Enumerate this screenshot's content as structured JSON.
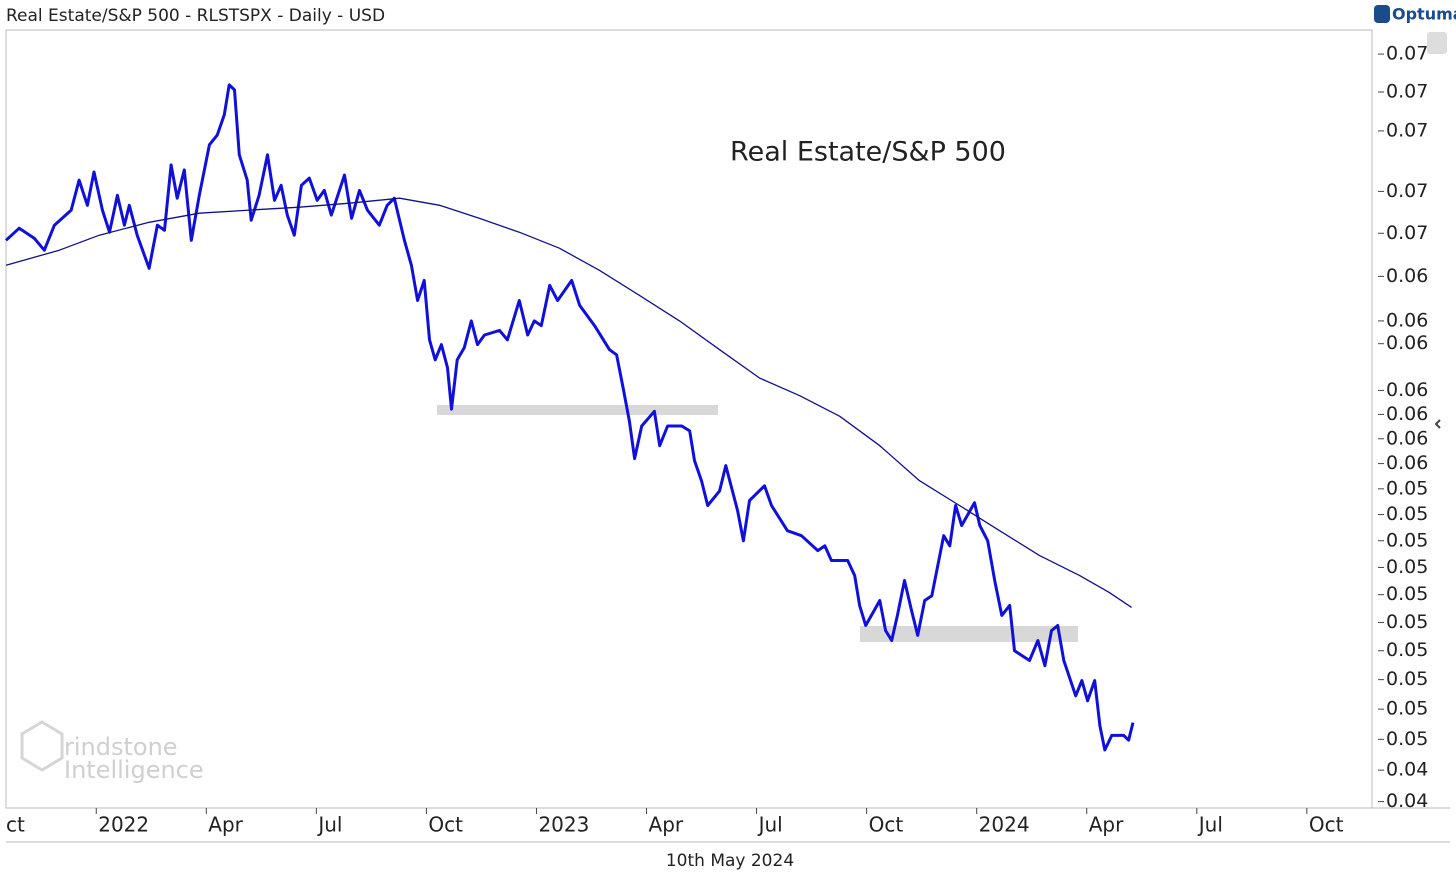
{
  "header": {
    "title": "Real Estate/S&P 500 - RLSTSPX - Daily - USD",
    "brand": "Optuma",
    "watermark": [
      "rindstone",
      "Intelligence"
    ],
    "date": "10th May 2024"
  },
  "chart_data": {
    "type": "line",
    "log": true,
    "annotation": "Real Estate/S&P 500",
    "xlim": [
      2021.795,
      2024.898
    ],
    "xticks": [
      {
        "value": 2021.75,
        "label": "ct"
      },
      {
        "value": 2022,
        "label": "2022"
      },
      {
        "value": 2022.25,
        "label": "Apr"
      },
      {
        "value": 2022.5,
        "label": "Jul"
      },
      {
        "value": 2022.75,
        "label": "Oct"
      },
      {
        "value": 2023,
        "label": "2023"
      },
      {
        "value": 2023.25,
        "label": "Apr"
      },
      {
        "value": 2023.5,
        "label": "Jul"
      },
      {
        "value": 2023.75,
        "label": "Oct"
      },
      {
        "value": 2024,
        "label": "2024"
      },
      {
        "value": 2024.25,
        "label": "Apr"
      },
      {
        "value": 2024.5,
        "label": "Jul"
      },
      {
        "value": 2024.75,
        "label": "Oct"
      }
    ],
    "ylim": [
      0.0438,
      0.0763
    ],
    "yticks": [
      {
        "value": 0.044,
        "label": "0.04"
      },
      {
        "value": 0.045,
        "label": "0.04"
      },
      {
        "value": 0.046,
        "label": "0.05"
      },
      {
        "value": 0.047,
        "label": "0.05"
      },
      {
        "value": 0.048,
        "label": "0.05"
      },
      {
        "value": 0.049,
        "label": "0.05"
      },
      {
        "value": 0.05,
        "label": "0.05"
      },
      {
        "value": 0.051,
        "label": "0.05"
      },
      {
        "value": 0.052,
        "label": "0.05"
      },
      {
        "value": 0.053,
        "label": "0.05"
      },
      {
        "value": 0.054,
        "label": "0.05"
      },
      {
        "value": 0.055,
        "label": "0.05"
      },
      {
        "value": 0.056,
        "label": "0.06"
      },
      {
        "value": 0.057,
        "label": "0.06"
      },
      {
        "value": 0.058,
        "label": "0.06"
      },
      {
        "value": 0.059,
        "label": "0.06"
      },
      {
        "value": 0.061,
        "label": "0.06"
      },
      {
        "value": 0.062,
        "label": "0.06"
      },
      {
        "value": 0.064,
        "label": "0.06"
      },
      {
        "value": 0.066,
        "label": "0.07"
      },
      {
        "value": 0.068,
        "label": "0.07"
      },
      {
        "value": 0.071,
        "label": "0.07"
      },
      {
        "value": 0.073,
        "label": "0.07"
      },
      {
        "value": 0.075,
        "label": "0.07"
      }
    ],
    "series": [
      {
        "color": "#1010d8",
        "width": 3,
        "x": [
          2021.795,
          2021.825,
          2021.859,
          2021.882,
          2021.905,
          2021.943,
          2021.961,
          2021.98,
          2021.995,
          2022.014,
          2022.03,
          2022.048,
          2022.064,
          2022.075,
          2022.093,
          2022.12,
          2022.139,
          2022.155,
          2022.17,
          2022.184,
          2022.2,
          2022.216,
          2022.234,
          2022.257,
          2022.275,
          2022.291,
          2022.302,
          2022.314,
          2022.325,
          2022.343,
          2022.352,
          2022.37,
          2022.389,
          2022.405,
          2022.42,
          2022.434,
          2022.45,
          2022.466,
          2022.484,
          2022.502,
          2022.518,
          2022.534,
          2022.564,
          2022.58,
          2022.598,
          2022.616,
          2022.643,
          2022.661,
          2022.677,
          2022.7,
          2022.716,
          2022.73,
          2022.745,
          2022.757,
          2022.77,
          2022.784,
          2022.798,
          2022.807,
          2022.82,
          2022.836,
          2022.852,
          2022.866,
          2022.882,
          2022.916,
          2022.934,
          2022.961,
          2022.98,
          2022.995,
          2023.011,
          2023.03,
          2023.048,
          2023.08,
          2023.098,
          2023.132,
          2023.166,
          2023.182,
          2023.198,
          2023.211,
          2023.223,
          2023.239,
          2023.268,
          2023.28,
          2023.298,
          2023.33,
          2023.348,
          2023.359,
          2023.375,
          2023.389,
          2023.416,
          2023.43,
          2023.457,
          2023.47,
          2023.484,
          2023.518,
          2023.534,
          2023.57,
          2023.602,
          2023.639,
          2023.655,
          2023.67,
          2023.707,
          2023.723,
          2023.734,
          2023.748,
          2023.78,
          2023.793,
          2023.807,
          2023.82,
          2023.836,
          2023.852,
          2023.866,
          2023.882,
          2023.898,
          2023.925,
          2023.939,
          2023.952,
          2023.966,
          2023.995,
          2024.007,
          2024.025,
          2024.041,
          2024.057,
          2024.075,
          2024.086,
          2024.12,
          2024.139,
          2024.155,
          2024.17,
          2024.184,
          2024.198,
          2024.225,
          2024.239,
          2024.252,
          2024.268,
          2024.28,
          2024.291,
          2024.307,
          2024.334,
          2024.345,
          2024.355
        ],
        "values": [
          0.06567,
          0.06624,
          0.06577,
          0.06521,
          0.06638,
          0.0671,
          0.06855,
          0.06733,
          0.06895,
          0.0671,
          0.06605,
          0.06781,
          0.06638,
          0.06733,
          0.06591,
          0.06437,
          0.06638,
          0.06614,
          0.0693,
          0.06767,
          0.06905,
          0.06567,
          0.06781,
          0.0703,
          0.0708,
          0.07182,
          0.07337,
          0.07311,
          0.0698,
          0.06855,
          0.06662,
          0.06781,
          0.0698,
          0.06757,
          0.0683,
          0.06686,
          0.06591,
          0.0683,
          0.06865,
          0.06757,
          0.06805,
          0.06686,
          0.0688,
          0.06671,
          0.06805,
          0.0671,
          0.06638,
          0.06733,
          0.06767,
          0.06567,
          0.06451,
          0.06291,
          0.06382,
          0.06117,
          0.0603,
          0.06096,
          0.05996,
          0.05822,
          0.0603,
          0.06083,
          0.062,
          0.06096,
          0.06138,
          0.06158,
          0.06117,
          0.06291,
          0.06138,
          0.062,
          0.06179,
          0.06359,
          0.06291,
          0.06382,
          0.0627,
          0.06179,
          0.06074,
          0.06052,
          0.059,
          0.05772,
          0.0562,
          0.05752,
          0.05813,
          0.05672,
          0.05752,
          0.05752,
          0.05732,
          0.05612,
          0.05532,
          0.05435,
          0.05492,
          0.05592,
          0.05415,
          0.053,
          0.05454,
          0.05512,
          0.05435,
          0.05338,
          0.05319,
          0.05263,
          0.05281,
          0.05226,
          0.05226,
          0.0517,
          0.05061,
          0.04989,
          0.05079,
          0.04971,
          0.04936,
          0.05025,
          0.05152,
          0.05043,
          0.04954,
          0.05079,
          0.05096,
          0.05319,
          0.05281,
          0.05435,
          0.05358,
          0.05446,
          0.05358,
          0.053,
          0.05152,
          0.05025,
          0.05061,
          0.049,
          0.04866,
          0.04936,
          0.04848,
          0.04971,
          0.04989,
          0.04866,
          0.04745,
          0.04797,
          0.04728,
          0.04797,
          0.04645,
          0.04565,
          0.04613,
          0.04613,
          0.04597,
          0.04655
        ]
      },
      {
        "color": "#10108a",
        "width": 1.3,
        "x": [
          2021.795,
          2021.916,
          2022.007,
          2022.12,
          2022.234,
          2022.348,
          2022.461,
          2022.575,
          2022.689,
          2022.78,
          2022.87,
          2022.961,
          2023.052,
          2023.143,
          2023.234,
          2023.325,
          2023.416,
          2023.507,
          2023.598,
          2023.689,
          2023.78,
          2023.87,
          2023.961,
          2024.052,
          2024.143,
          2024.234,
          2024.302,
          2024.352
        ],
        "values": [
          0.06451,
          0.06521,
          0.06591,
          0.06652,
          0.06695,
          0.0671,
          0.06724,
          0.06743,
          0.06767,
          0.06733,
          0.06671,
          0.06605,
          0.0653,
          0.06428,
          0.06314,
          0.062,
          0.06074,
          0.05952,
          0.05878,
          0.05792,
          0.05672,
          0.05532,
          0.05435,
          0.05338,
          0.05244,
          0.0517,
          0.05107,
          0.05054
        ]
      }
    ]
  }
}
